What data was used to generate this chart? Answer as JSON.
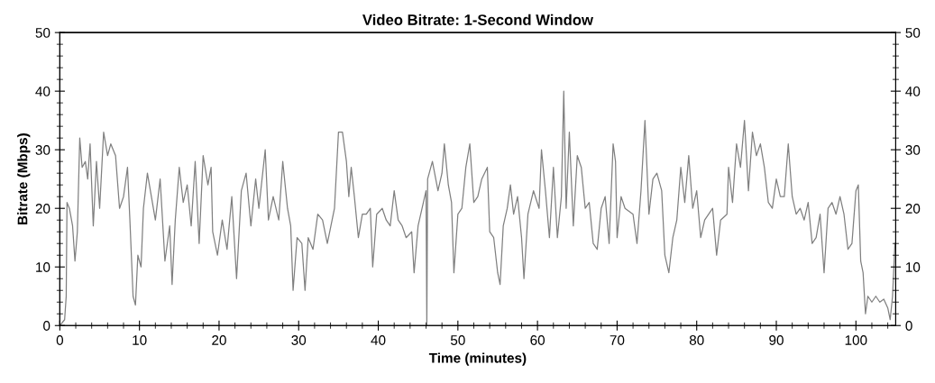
{
  "chart_data": {
    "type": "line",
    "title": "Video Bitrate: 1-Second Window",
    "xlabel": "Time (minutes)",
    "ylabel": "Bitrate (Mbps)",
    "xlim": [
      0,
      105
    ],
    "xticks": [
      0,
      10,
      20,
      30,
      40,
      50,
      60,
      70,
      80,
      90,
      100
    ],
    "ylim": [
      0,
      50
    ],
    "yticks": [
      0,
      10,
      20,
      30,
      40,
      50
    ],
    "y2lim": [
      0,
      50
    ],
    "y2ticks": [
      0,
      10,
      20,
      30,
      40,
      50
    ],
    "grid": false,
    "legend": false,
    "marker": "none",
    "line_style": "solid",
    "series": [
      {
        "color": "#808080",
        "x": [
          0,
          0.3,
          0.6,
          0.8,
          0.9,
          1.2,
          1.6,
          1.9,
          2.2,
          2.5,
          2.8,
          3.2,
          3.5,
          3.8,
          4.2,
          4.6,
          5.0,
          5.5,
          6.0,
          6.4,
          7,
          7.5,
          8,
          8.5,
          8.8,
          9.2,
          9.5,
          9.8,
          10.2,
          10.5,
          11,
          11.5,
          12,
          12.6,
          13.2,
          13.8,
          14.1,
          14.5,
          15,
          15.5,
          16,
          16.5,
          17,
          17.5,
          18,
          18.6,
          19,
          19.2,
          19.8,
          20.4,
          21,
          21.6,
          22.2,
          22.8,
          23.4,
          24,
          24.6,
          25,
          25.8,
          26.2,
          26.8,
          27.5,
          28,
          28.6,
          29,
          29.3,
          29.8,
          30.4,
          30.8,
          31.2,
          31.8,
          32.4,
          33,
          33.6,
          34.2,
          34.5,
          35,
          35.5,
          36,
          36.3,
          36.6,
          37,
          37.5,
          38,
          38.5,
          39,
          39.3,
          39.8,
          40.5,
          41,
          41.5,
          42,
          42.5,
          43,
          43.5,
          44.2,
          44.5,
          45,
          45.5,
          46,
          46.1,
          46.2,
          46.8,
          47.5,
          48,
          48.3,
          48.8,
          49.2,
          49.5,
          50,
          50.5,
          51,
          51.5,
          52,
          52.5,
          53,
          53.7,
          54,
          54.5,
          55,
          55.3,
          55.7,
          56.2,
          56.6,
          57,
          57.5,
          58,
          58.3,
          58.8,
          59.5,
          60.2,
          60.5,
          61,
          61.5,
          62,
          62.5,
          63,
          63.3,
          63.6,
          64,
          64.5,
          65,
          65.5,
          66,
          66.5,
          67,
          67.5,
          68,
          68.5,
          69,
          69.5,
          69.8,
          70,
          70.5,
          71,
          72,
          72.5,
          73,
          73.5,
          74,
          74.5,
          75,
          75.6,
          76,
          76.5,
          77,
          77.5,
          78,
          78.5,
          79,
          79.5,
          80,
          80.5,
          81,
          81.5,
          82,
          82.5,
          83,
          83.8,
          84,
          84.5,
          85,
          85.5,
          86,
          86.5,
          87,
          87.5,
          88,
          88.5,
          89,
          89.5,
          90,
          90.5,
          91,
          91.5,
          92,
          92.5,
          93,
          93.5,
          94,
          94.5,
          95,
          95.5,
          96,
          96.5,
          97,
          97.5,
          98,
          98.5,
          99,
          99.5,
          100,
          100.3,
          100.6,
          100.9,
          101.2,
          101.5,
          102,
          102.5,
          103,
          103.5,
          104,
          104.3,
          104.6,
          104.9
        ],
        "values": [
          0,
          0.5,
          1,
          5,
          21,
          20,
          17,
          11,
          16,
          32,
          27,
          28,
          25,
          31,
          17,
          28,
          20,
          33,
          29,
          31,
          29,
          20,
          22,
          27,
          18,
          5,
          3.5,
          12,
          10,
          20,
          26,
          22,
          18,
          25,
          11,
          17,
          7,
          18,
          27,
          21,
          24,
          17,
          28,
          14,
          29,
          24,
          27,
          16,
          12,
          18,
          13,
          22,
          8,
          23,
          26,
          17,
          25,
          20,
          30,
          18,
          22,
          18,
          28,
          20,
          17,
          6,
          15,
          14,
          6,
          15,
          13,
          19,
          18,
          14,
          18,
          20,
          33,
          33,
          28,
          22,
          27,
          22,
          15,
          19,
          19,
          20,
          10,
          19,
          20,
          18,
          17,
          23,
          18,
          17,
          15,
          16,
          9,
          17,
          20,
          23,
          0,
          25,
          28,
          23,
          26,
          31,
          24,
          21,
          9,
          19,
          20,
          27,
          31,
          21,
          22,
          25,
          27,
          16,
          15,
          9,
          7,
          17,
          20,
          24,
          19,
          22,
          15,
          8,
          19,
          23,
          20,
          30,
          23,
          15,
          27,
          15,
          22,
          40,
          20,
          33,
          17,
          29,
          27,
          20,
          21,
          14,
          13,
          20,
          22,
          14,
          31,
          28,
          15,
          22,
          20,
          19,
          14,
          23,
          35,
          19,
          25,
          26,
          23,
          12,
          9,
          15,
          18,
          27,
          21,
          29,
          20,
          23,
          15,
          18,
          19,
          20,
          12,
          18,
          19,
          27,
          21,
          31,
          27,
          35,
          23,
          33,
          29,
          31,
          27,
          21,
          20,
          25,
          22,
          22,
          31,
          22,
          19,
          20,
          18,
          21,
          14,
          15,
          19,
          9,
          20,
          21,
          19,
          22,
          19,
          13,
          14,
          23,
          24,
          11,
          9,
          2,
          5,
          4,
          5,
          4,
          4.5,
          3,
          1,
          5,
          14
        ]
      }
    ]
  }
}
